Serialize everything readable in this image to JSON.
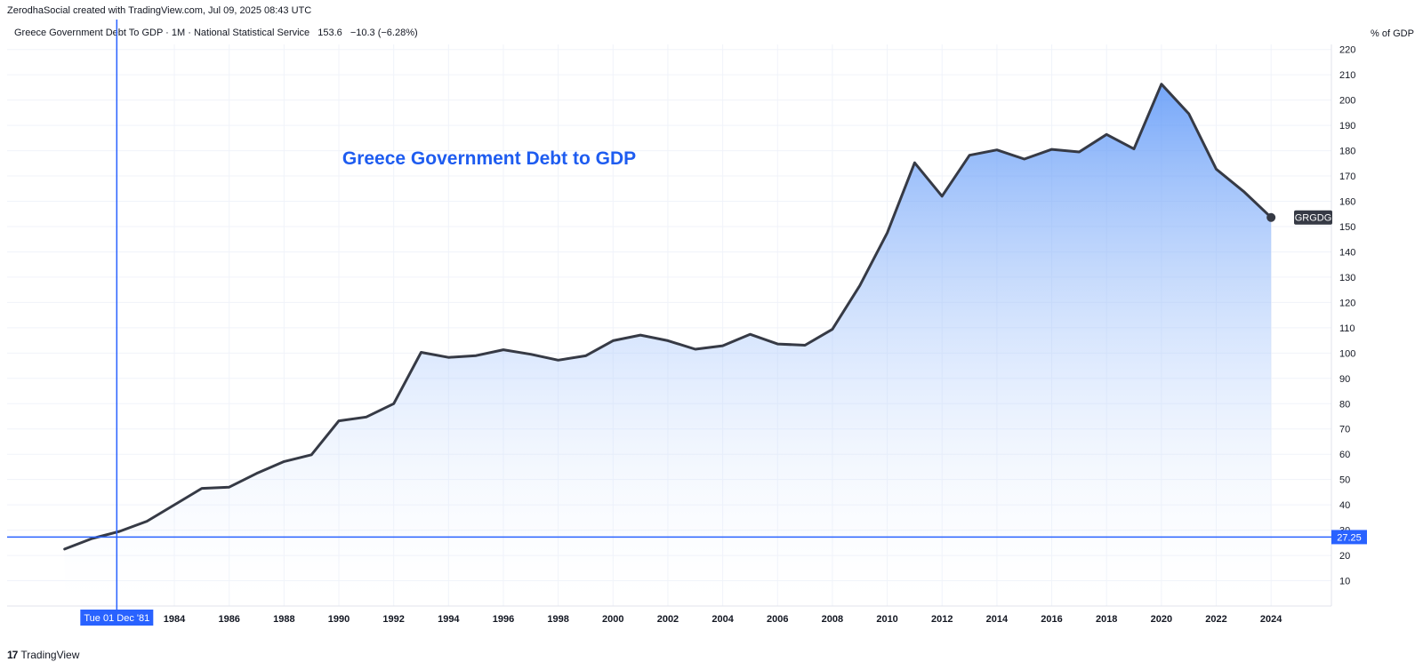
{
  "header": {
    "attribution": "ZerodhaSocial created with TradingView.com, Jul 09, 2025 08:43 UTC"
  },
  "legend": {
    "title": "Greece Government Debt To GDP · 1M · National Statistical Service",
    "last_value": "153.6",
    "change": "−10.3 (−6.28%)"
  },
  "axis": {
    "unit_label": "% of GDP"
  },
  "crosshair": {
    "date_label": "Tue 01 Dec '81",
    "price_label": "27.25",
    "year": 1981.9,
    "value": 27.25
  },
  "footer": {
    "brand": "TradingView",
    "logo_glyph": "17"
  },
  "colors": {
    "line": "#363a45",
    "area_top": "#4f8ef7",
    "crosshair": "#2962ff",
    "annotation": "#1e5cf0",
    "grid": "#f0f3fa"
  },
  "chart_data": {
    "type": "area",
    "title": "Greece Government Debt to GDP",
    "series_tag": "GRGDG",
    "x": [
      1980,
      1981,
      1982,
      1983,
      1984,
      1985,
      1986,
      1987,
      1988,
      1989,
      1990,
      1991,
      1992,
      1993,
      1994,
      1995,
      1996,
      1997,
      1998,
      1999,
      2000,
      2001,
      2002,
      2003,
      2004,
      2005,
      2006,
      2007,
      2008,
      2009,
      2010,
      2011,
      2012,
      2013,
      2014,
      2015,
      2016,
      2017,
      2018,
      2019,
      2020,
      2021,
      2022,
      2023,
      2024
    ],
    "y": [
      22.5,
      26.7,
      29.5,
      33.5,
      40.0,
      46.5,
      47.0,
      52.4,
      57.1,
      59.8,
      73.2,
      74.7,
      80.0,
      100.3,
      98.3,
      99.0,
      101.3,
      99.5,
      97.2,
      98.9,
      104.9,
      107.1,
      104.9,
      101.5,
      102.9,
      107.4,
      103.6,
      103.1,
      109.4,
      126.7,
      147.5,
      175.2,
      162.0,
      178.2,
      180.3,
      176.7,
      180.5,
      179.5,
      186.4,
      180.7,
      206.3,
      194.6,
      172.7,
      163.9,
      153.6
    ],
    "x_ticks": [
      1984,
      1986,
      1988,
      1990,
      1992,
      1994,
      1996,
      1998,
      2000,
      2002,
      2004,
      2006,
      2008,
      2010,
      2012,
      2014,
      2016,
      2018,
      2020,
      2022,
      2024
    ],
    "y_ticks": [
      10,
      20,
      30,
      40,
      50,
      60,
      70,
      80,
      90,
      100,
      110,
      120,
      130,
      140,
      150,
      160,
      170,
      180,
      190,
      200,
      210,
      220
    ],
    "xlim": [
      1977.9,
      2026.2
    ],
    "ylim": [
      0,
      222
    ],
    "y_axis_side": "right",
    "grid": true
  }
}
